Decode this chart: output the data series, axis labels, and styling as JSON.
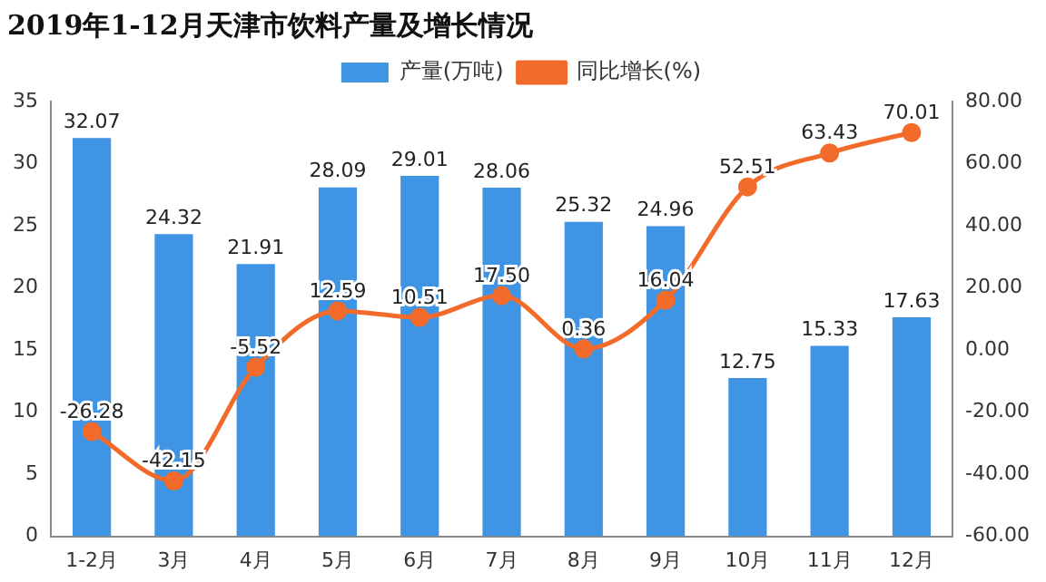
{
  "chart_data": {
    "type": "bar",
    "title": "2019年1-12月天津市饮料产量及增长情况",
    "categories": [
      "1-2月",
      "3月",
      "4月",
      "5月",
      "6月",
      "7月",
      "8月",
      "9月",
      "10月",
      "11月",
      "12月"
    ],
    "series": [
      {
        "name": "产量(万吨)",
        "color": "#3f94e4",
        "values": [
          32.07,
          24.32,
          21.91,
          28.09,
          29.01,
          28.06,
          25.32,
          24.96,
          12.75,
          15.33,
          17.63
        ],
        "value_labels": [
          "32.07",
          "24.32",
          "21.91",
          "28.09",
          "29.01",
          "28.06",
          "25.32",
          "24.96",
          "12.75",
          "15.33",
          "17.63"
        ]
      },
      {
        "name": "同比增长(%)",
        "type": "line",
        "axis": "y2",
        "color": "#f26b2a",
        "values": [
          -26.28,
          -42.15,
          -5.52,
          12.59,
          10.51,
          17.5,
          0.36,
          16.04,
          52.51,
          63.43,
          70.01
        ],
        "value_labels": [
          "-26.28",
          "-42.15",
          "-5.52",
          "12.59",
          "10.51",
          "17.50",
          "0.36",
          "16.04",
          "52.51",
          "63.43",
          "70.01"
        ]
      }
    ],
    "ylim": [
      0,
      35
    ],
    "yticks": [
      0,
      5,
      10,
      15,
      20,
      25,
      30,
      35
    ],
    "y2lim": [
      -60,
      80
    ],
    "y2ticks": [
      {
        "value": -60,
        "label": "-60.00"
      },
      {
        "value": -40,
        "label": "-40.00"
      },
      {
        "value": -20,
        "label": "-20.00"
      },
      {
        "value": 0,
        "label": "0.00"
      },
      {
        "value": 20,
        "label": "20.00"
      },
      {
        "value": 40,
        "label": "40.00"
      },
      {
        "value": 60,
        "label": "60.00"
      },
      {
        "value": 80,
        "label": "80.00"
      }
    ],
    "legend": "top",
    "marker": "circle",
    "grid": false
  }
}
